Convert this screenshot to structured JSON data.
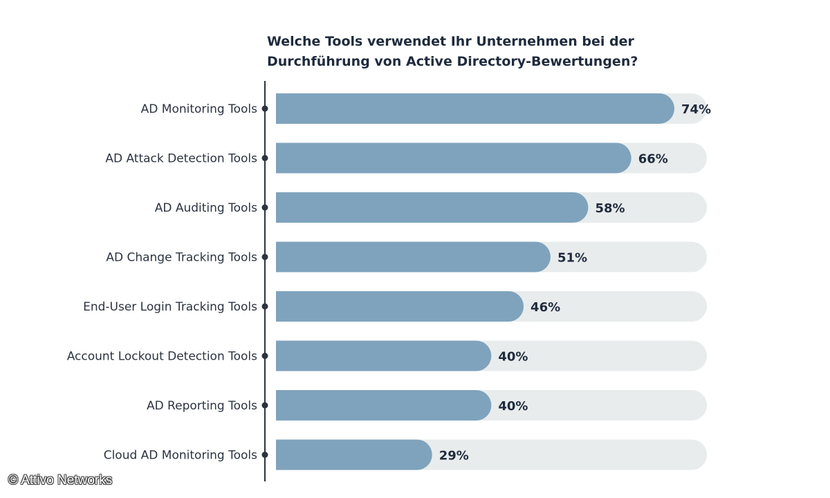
{
  "chart_data": {
    "type": "bar",
    "orientation": "horizontal",
    "title_lines": [
      "Welche Tools verwendet Ihr Unternehmen bei der",
      "Durchführung von Active Directory-Bewertungen?"
    ],
    "categories": [
      "AD Monitoring Tools",
      "AD Attack Detection Tools",
      "AD Auditing Tools",
      "AD Change Tracking Tools",
      "End-User Login Tracking Tools",
      "Account Lockout Detection Tools",
      "AD Reporting Tools",
      "Cloud AD Monitoring Tools"
    ],
    "values": [
      74,
      66,
      58,
      51,
      46,
      40,
      40,
      29
    ],
    "value_labels": [
      "74%",
      "66%",
      "58%",
      "51%",
      "46%",
      "40%",
      "40%",
      "29%"
    ],
    "unit": "%",
    "xlim": [
      0,
      100
    ],
    "grid": false,
    "legend": "none",
    "colors": {
      "bar": "#7fa3bd",
      "track": "#e9ecec",
      "axis": "#2b3340",
      "text": "#1f2b3d"
    }
  },
  "copyright": "© Attivo Networks"
}
